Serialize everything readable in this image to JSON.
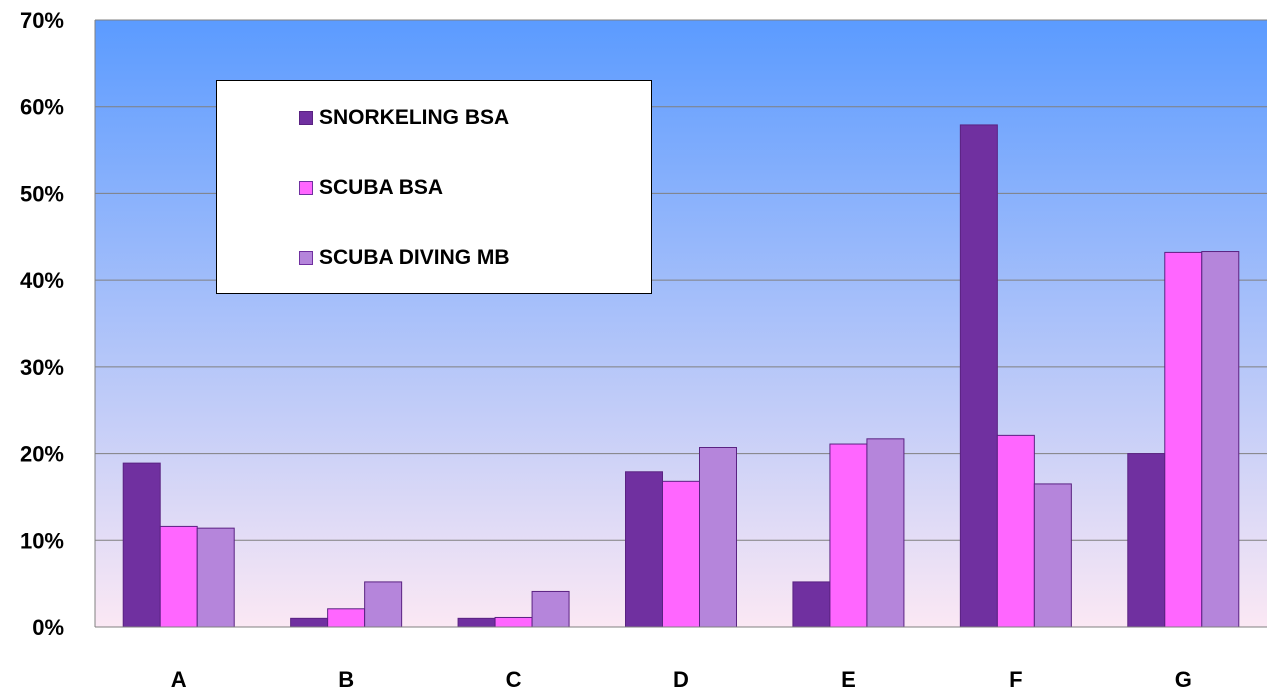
{
  "chart_data": {
    "type": "bar",
    "categories": [
      "A",
      "B",
      "C",
      "D",
      "E",
      "F",
      "G"
    ],
    "series": [
      {
        "name": "SNORKELING BSA",
        "color": "#7030A0",
        "values": [
          18.9,
          1.0,
          1.0,
          17.9,
          5.2,
          57.9,
          20.0
        ]
      },
      {
        "name": "SCUBA BSA",
        "color": "#FF66FF",
        "values": [
          11.6,
          2.1,
          1.1,
          16.8,
          21.1,
          22.1,
          43.2
        ]
      },
      {
        "name": "SCUBA DIVING MB",
        "color": "#B585DB",
        "values": [
          11.4,
          5.2,
          4.1,
          20.7,
          21.7,
          16.5,
          43.3
        ]
      }
    ],
    "ylim": [
      0,
      70
    ],
    "yticks": [
      "0%",
      "10%",
      "20%",
      "30%",
      "40%",
      "50%",
      "60%",
      "70%"
    ],
    "title": "",
    "xlabel": "",
    "ylabel": "",
    "grid": true,
    "legend_position": "top-left",
    "background_gradient": [
      "#5B9BFF",
      "#FBE8F4"
    ]
  }
}
